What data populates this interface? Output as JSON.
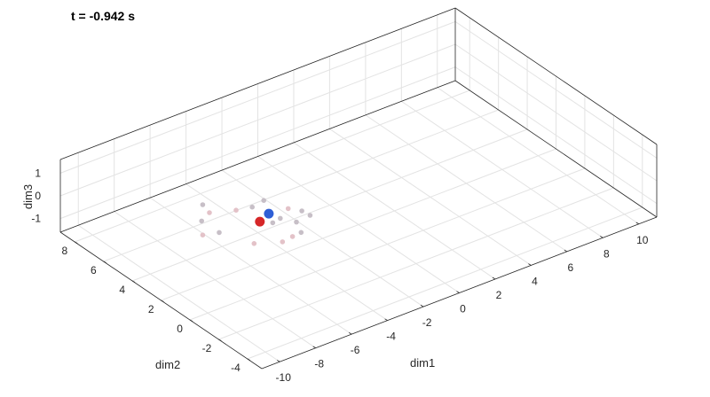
{
  "chart_data": {
    "type": "scatter",
    "title": "t = -0.942 s",
    "xlabel": "dim1",
    "ylabel": "dim2",
    "zlabel": "dim3",
    "xlim": [
      -11,
      11
    ],
    "ylim": [
      -5,
      9
    ],
    "zlim": [
      -1.6,
      1.6
    ],
    "xticks": [
      -10,
      -8,
      -6,
      -4,
      -2,
      0,
      2,
      4,
      6,
      8,
      10
    ],
    "yticks": [
      -4,
      -2,
      0,
      2,
      4,
      6,
      8
    ],
    "zticks": [
      -1,
      0,
      1
    ],
    "grid": true,
    "colors": {
      "red": "#d62728",
      "blue": "#2f5fd6",
      "faded": "#c7bfc7",
      "faded_pink": "#e3c2c8"
    },
    "series": [
      {
        "points": [
          {
            "x": -5.5,
            "y": 2.0,
            "z": 0.2,
            "color": "red"
          },
          {
            "x": -5.0,
            "y": 2.0,
            "z": 0.4,
            "color": "blue"
          }
        ]
      },
      {
        "points": [
          {
            "x": -7.3,
            "y": 3.8,
            "z": 0.0,
            "color": "faded"
          },
          {
            "x": -7.0,
            "y": 4.1,
            "z": 0.5,
            "color": "faded"
          },
          {
            "x": -6.7,
            "y": 4.0,
            "z": 0.1,
            "color": "faded_pink"
          },
          {
            "x": -6.1,
            "y": 2.9,
            "z": 0.5,
            "color": "faded_pink"
          },
          {
            "x": -5.6,
            "y": 2.4,
            "z": 0.7,
            "color": "faded"
          },
          {
            "x": -5.2,
            "y": 2.1,
            "z": 1.0,
            "color": "faded"
          },
          {
            "x": -4.6,
            "y": 1.7,
            "z": 0.2,
            "color": "faded"
          },
          {
            "x": -4.4,
            "y": 1.4,
            "z": 0.7,
            "color": "faded_pink"
          },
          {
            "x": -4.1,
            "y": 1.2,
            "z": 0.1,
            "color": "faded"
          },
          {
            "x": -3.8,
            "y": 1.2,
            "z": 0.5,
            "color": "faded"
          },
          {
            "x": -3.5,
            "y": 1.0,
            "z": 0.3,
            "color": "faded"
          },
          {
            "x": -4.0,
            "y": 1.0,
            "z": -0.3,
            "color": "faded"
          },
          {
            "x": -4.8,
            "y": 1.3,
            "z": -0.6,
            "color": "faded_pink"
          },
          {
            "x": -5.9,
            "y": 1.9,
            "z": -0.6,
            "color": "faded_pink"
          },
          {
            "x": -7.4,
            "y": 3.6,
            "z": -0.5,
            "color": "faded_pink"
          },
          {
            "x": -6.8,
            "y": 3.2,
            "z": -0.4,
            "color": "faded"
          },
          {
            "x": -5.1,
            "y": 1.6,
            "z": 0.2,
            "color": "faded"
          },
          {
            "x": -4.4,
            "y": 1.1,
            "z": -0.4,
            "color": "faded_pink"
          }
        ]
      }
    ]
  }
}
